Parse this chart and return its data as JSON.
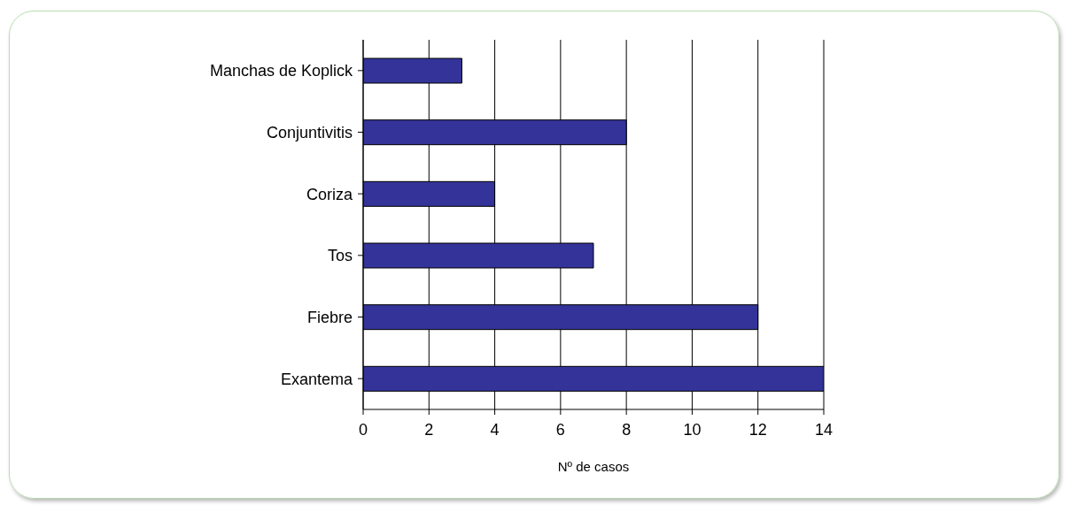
{
  "chart_data": {
    "type": "bar",
    "orientation": "horizontal",
    "xlabel": "Nº de casos",
    "categories": [
      "Manchas de Koplick",
      "Conjuntivitis",
      "Coriza",
      "Tos",
      "Fiebre",
      "Exantema"
    ],
    "values": [
      3,
      8,
      4,
      7,
      12,
      14
    ],
    "color": "#333399",
    "xlim": [
      0,
      14
    ],
    "xticks": [
      0,
      2,
      4,
      6,
      8,
      10,
      12,
      14
    ],
    "grid": "x"
  }
}
